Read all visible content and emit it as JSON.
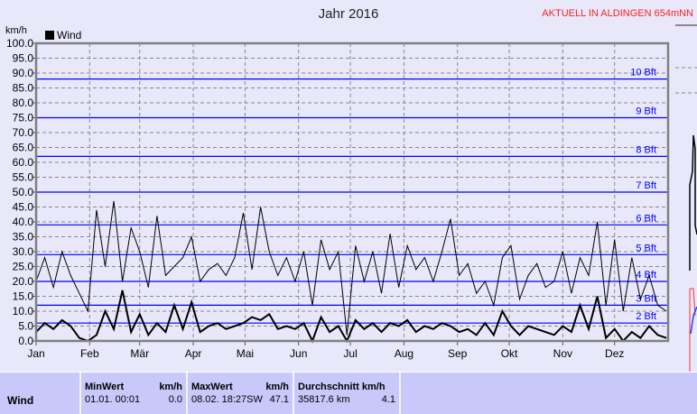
{
  "header": {
    "title": "Jahr 2016",
    "station": "AKTUELL IN ALDINGEN 654mNN"
  },
  "chart_data": {
    "type": "line",
    "title": "Jahr 2016",
    "ylabel": "km/h",
    "ylim": [
      0,
      100
    ],
    "yticks": [
      "0.0",
      "5.0",
      "10.0",
      "15.0",
      "20.0",
      "25.0",
      "30.0",
      "35.0",
      "40.0",
      "45.0",
      "50.0",
      "55.0",
      "60.0",
      "65.0",
      "70.0",
      "75.0",
      "80.0",
      "85.0",
      "90.0",
      "95.0",
      "100.0"
    ],
    "xlim_days": [
      0,
      366
    ],
    "months": [
      "Jan",
      "Feb",
      "Mär",
      "Apr",
      "Mai",
      "Jun",
      "Jul",
      "Aug",
      "Sep",
      "Okt",
      "Nov",
      "Dez"
    ],
    "legend": [
      "Wind"
    ],
    "legend_position": "top-left",
    "grid": true,
    "x_step_days": 5,
    "series": [
      {
        "name": "Wind",
        "style": "max",
        "color": "#000000",
        "values": [
          20,
          28,
          18,
          30,
          22,
          16,
          10,
          44,
          25,
          47,
          20,
          38,
          30,
          18,
          42,
          22,
          25,
          28,
          35,
          20,
          24,
          26,
          22,
          28,
          43,
          24,
          45,
          30,
          22,
          28,
          20,
          30,
          12,
          34,
          24,
          30,
          2,
          32,
          20,
          30,
          16,
          36,
          18,
          32,
          24,
          28,
          20,
          30,
          41,
          22,
          26,
          16,
          20,
          12,
          28,
          32,
          14,
          22,
          26,
          18,
          20,
          30,
          16,
          28,
          22,
          40,
          12,
          34,
          10,
          28,
          14,
          22,
          12,
          10
        ]
      },
      {
        "color": "#000000",
        "style": "average",
        "values": [
          3,
          6,
          4,
          7,
          5,
          1,
          0,
          2,
          10,
          4,
          17,
          3,
          9,
          2,
          6,
          3,
          12,
          4,
          13,
          3,
          5,
          6,
          4,
          5,
          6,
          8,
          7,
          9,
          4,
          5,
          4,
          6,
          0,
          8,
          3,
          5,
          0,
          7,
          4,
          6,
          3,
          6,
          5,
          7,
          3,
          5,
          4,
          6,
          5,
          3,
          4,
          2,
          6,
          2,
          10,
          5,
          2,
          5,
          4,
          3,
          2,
          5,
          3,
          12,
          4,
          15,
          1,
          4,
          0,
          3,
          1,
          5,
          2,
          1
        ]
      }
    ],
    "reference_lines": {
      "color": "#0000ff",
      "levels": [
        {
          "label": "2 Bft",
          "value": 6
        },
        {
          "label": "3 Bft",
          "value": 12
        },
        {
          "label": "4 Bft",
          "value": 20
        },
        {
          "label": "5 Bft",
          "value": 29
        },
        {
          "label": "6 Bft",
          "value": 39
        },
        {
          "label": "7 Bft",
          "value": 50
        },
        {
          "label": "8 Bft",
          "value": 62
        },
        {
          "label": "9 Bft",
          "value": 75
        },
        {
          "label": "10 Bft",
          "value": 88
        }
      ]
    }
  },
  "stats": {
    "row_label": "Wind",
    "min": {
      "title": "MinWert",
      "unit": "km/h",
      "date": "01.01.  00:01",
      "value": "0.0"
    },
    "max": {
      "title": "MaxWert",
      "unit": "km/h",
      "date": "08.02.  18:27SW",
      "value": "47.1"
    },
    "avg": {
      "title": "Durchschnitt km/h",
      "date": "35817.6 km",
      "value": "4.1"
    }
  }
}
